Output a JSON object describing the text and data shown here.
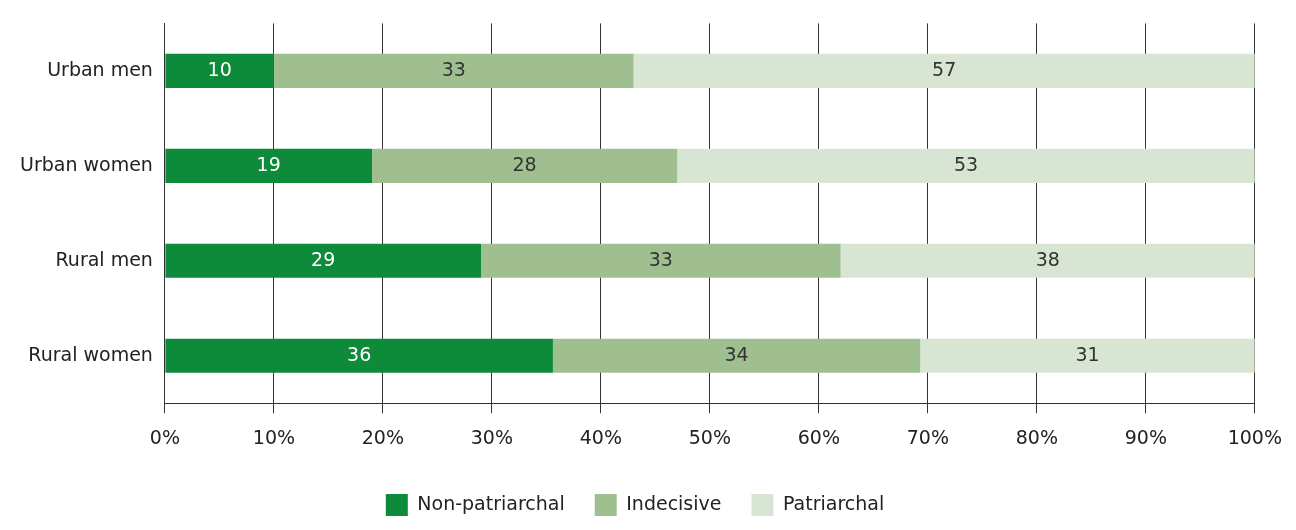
{
  "chart_data": {
    "type": "bar",
    "orientation": "horizontal",
    "stacked": true,
    "categories": [
      "Urban men",
      "Urban women",
      "Rural men",
      "Rural women"
    ],
    "series": [
      {
        "name": "Non-patriarchal",
        "color": "#0d8a3a",
        "values": [
          10,
          19,
          29,
          35.6
        ],
        "value_labels": [
          "10",
          "19",
          "29",
          "36"
        ]
      },
      {
        "name": "Indecisive",
        "color": "#a0bf90",
        "values": [
          33,
          28,
          33,
          33.7
        ],
        "value_labels": [
          "33",
          "28",
          "33",
          "34"
        ]
      },
      {
        "name": "Patriarchal",
        "color": "#d9e5d3",
        "values": [
          57,
          53,
          38,
          30.7
        ],
        "value_labels": [
          "57",
          "53",
          "38",
          "31"
        ]
      }
    ],
    "xlim": [
      0,
      100
    ],
    "xticks": [
      {
        "value": 0,
        "label": "0%"
      },
      {
        "value": 10,
        "label": "10%"
      },
      {
        "value": 20,
        "label": "20%"
      },
      {
        "value": 30,
        "label": "30%"
      },
      {
        "value": 40,
        "label": "40%"
      },
      {
        "value": 50,
        "label": "50%"
      },
      {
        "value": 60,
        "label": "60%"
      },
      {
        "value": 70,
        "label": "70%"
      },
      {
        "value": 80,
        "label": "80%"
      },
      {
        "value": 90,
        "label": "90%"
      },
      {
        "value": 100,
        "label": "100%"
      }
    ],
    "grid": "x",
    "legend": "bottom"
  }
}
